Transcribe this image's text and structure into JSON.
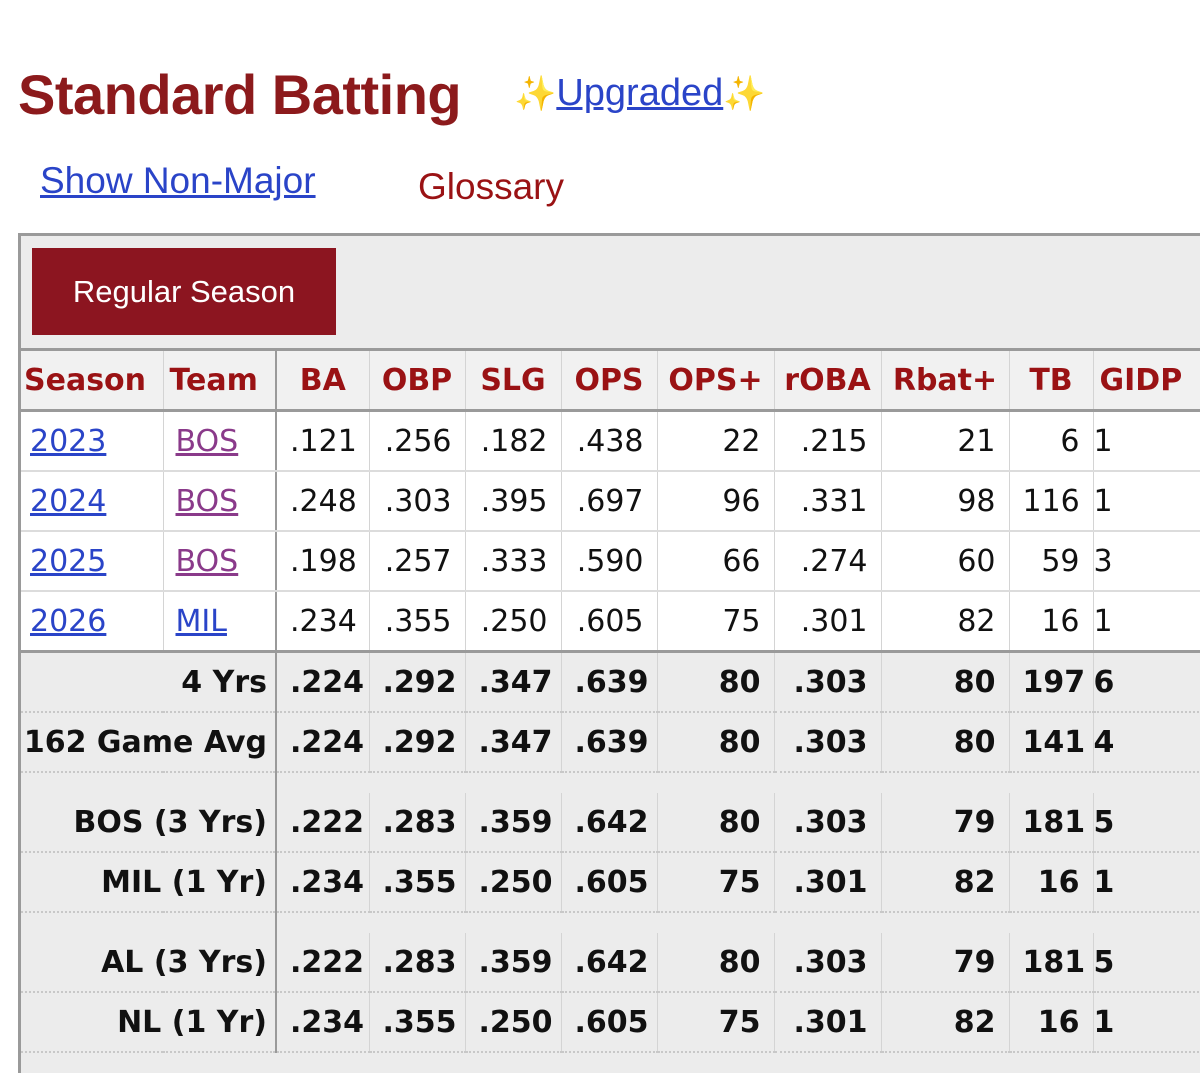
{
  "header": {
    "title": "Standard Batting",
    "upgrade_prefix": "✨",
    "upgrade_link": "Upgraded",
    "upgrade_suffix": "✨"
  },
  "links": {
    "show_non_major": "Show Non-Major",
    "glossary": "Glossary"
  },
  "tabs": {
    "regular_season": "Regular Season"
  },
  "table": {
    "columns": [
      "Season",
      "Team",
      "BA",
      "OBP",
      "SLG",
      "OPS",
      "OPS+",
      "rOBA",
      "Rbat+",
      "TB",
      "GIDP"
    ],
    "rows": [
      {
        "season": "2023",
        "team": "BOS",
        "ba": ".121",
        "obp": ".256",
        "slg": ".182",
        "ops": ".438",
        "ops_plus": "22",
        "roba": ".215",
        "rbat": "21",
        "tb": "6",
        "gidp": "1"
      },
      {
        "season": "2024",
        "team": "BOS",
        "ba": ".248",
        "obp": ".303",
        "slg": ".395",
        "ops": ".697",
        "ops_plus": "96",
        "roba": ".331",
        "rbat": "98",
        "tb": "116",
        "gidp": "1"
      },
      {
        "season": "2025",
        "team": "BOS",
        "ba": ".198",
        "obp": ".257",
        "slg": ".333",
        "ops": ".590",
        "ops_plus": "66",
        "roba": ".274",
        "rbat": "60",
        "tb": "59",
        "gidp": "3"
      },
      {
        "season": "2026",
        "team": "MIL",
        "ba": ".234",
        "obp": ".355",
        "slg": ".250",
        "ops": ".605",
        "ops_plus": "75",
        "roba": ".301",
        "rbat": "82",
        "tb": "16",
        "gidp": "1"
      }
    ],
    "totals": [
      {
        "label": "4 Yrs",
        "ba": ".224",
        "obp": ".292",
        "slg": ".347",
        "ops": ".639",
        "ops_plus": "80",
        "roba": ".303",
        "rbat": "80",
        "tb": "197",
        "gidp": "6"
      },
      {
        "label": "162 Game Avg",
        "ba": ".224",
        "obp": ".292",
        "slg": ".347",
        "ops": ".639",
        "ops_plus": "80",
        "roba": ".303",
        "rbat": "80",
        "tb": "141",
        "gidp": "4"
      },
      {
        "label": "BOS (3 Yrs)",
        "ba": ".222",
        "obp": ".283",
        "slg": ".359",
        "ops": ".642",
        "ops_plus": "80",
        "roba": ".303",
        "rbat": "79",
        "tb": "181",
        "gidp": "5"
      },
      {
        "label": "MIL (1 Yr)",
        "ba": ".234",
        "obp": ".355",
        "slg": ".250",
        "ops": ".605",
        "ops_plus": "75",
        "roba": ".301",
        "rbat": "82",
        "tb": "16",
        "gidp": "1"
      },
      {
        "label": "AL (3 Yrs)",
        "ba": ".222",
        "obp": ".283",
        "slg": ".359",
        "ops": ".642",
        "ops_plus": "80",
        "roba": ".303",
        "rbat": "79",
        "tb": "181",
        "gidp": "5"
      },
      {
        "label": "NL (1 Yr)",
        "ba": ".234",
        "obp": ".355",
        "slg": ".250",
        "ops": ".605",
        "ops_plus": "75",
        "roba": ".301",
        "rbat": "82",
        "tb": "16",
        "gidp": "1"
      }
    ]
  },
  "colors": {
    "title": "#8c1a1c",
    "link": "#2a44c8",
    "button_bg": "#8c1520",
    "header_text": "#9a1214"
  }
}
